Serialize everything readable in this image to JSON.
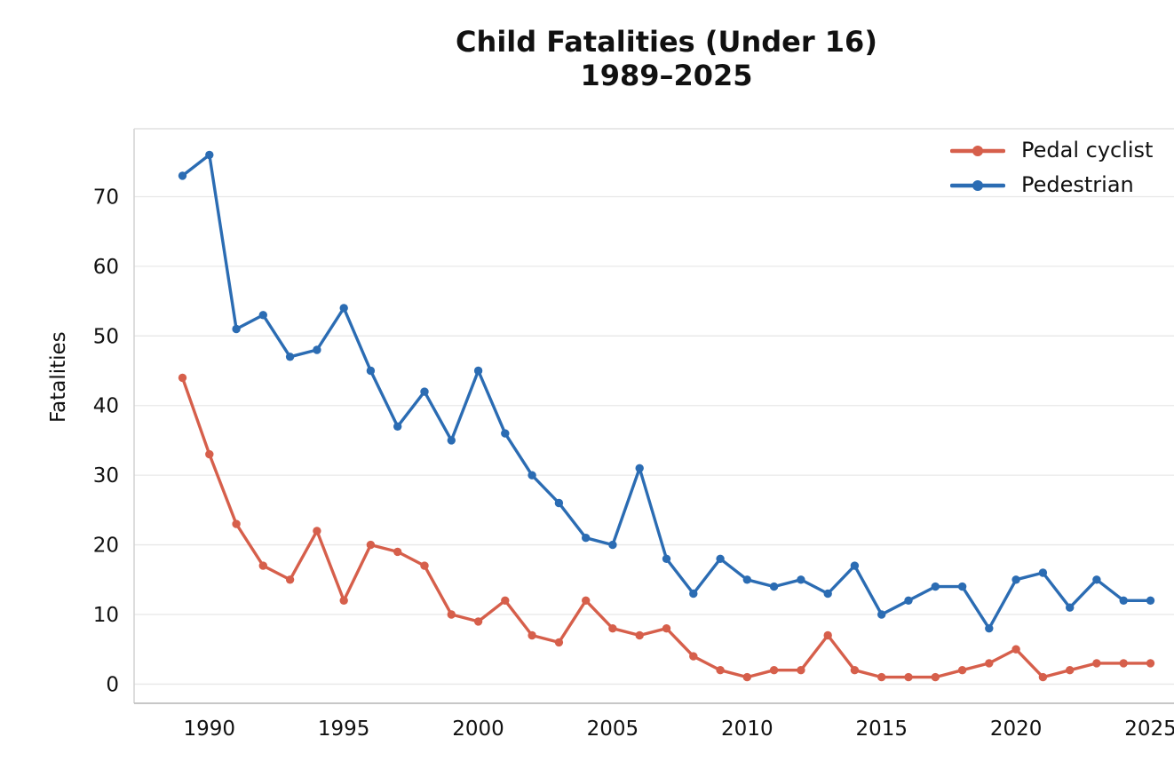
{
  "chart_data": {
    "type": "line",
    "title": "Child Fatalities (Under 16) 1989–2025",
    "title_line1": "Child Fatalities (Under 16)",
    "title_line2": "1989–2025",
    "xlabel": "",
    "ylabel": "Fatalities",
    "x": [
      1989,
      1990,
      1991,
      1992,
      1993,
      1994,
      1995,
      1996,
      1997,
      1998,
      1999,
      2000,
      2001,
      2002,
      2003,
      2004,
      2005,
      2006,
      2007,
      2008,
      2009,
      2010,
      2011,
      2012,
      2013,
      2014,
      2015,
      2016,
      2017,
      2018,
      2019,
      2020,
      2021,
      2022,
      2023,
      2024,
      2025
    ],
    "series": [
      {
        "name": "Pedal cyclist",
        "color": "#d65f4b",
        "values": [
          44,
          33,
          23,
          17,
          15,
          22,
          12,
          20,
          19,
          17,
          10,
          9,
          12,
          7,
          6,
          12,
          8,
          7,
          8,
          4,
          2,
          1,
          2,
          2,
          7,
          2,
          1,
          1,
          1,
          2,
          3,
          5,
          1,
          2,
          3,
          3,
          3
        ]
      },
      {
        "name": "Pedestrian",
        "color": "#2b6cb3",
        "values": [
          73,
          76,
          51,
          53,
          47,
          48,
          54,
          45,
          37,
          42,
          35,
          45,
          36,
          30,
          26,
          21,
          20,
          31,
          18,
          13,
          18,
          15,
          14,
          15,
          13,
          17,
          10,
          12,
          14,
          14,
          8,
          15,
          16,
          11,
          15,
          12,
          12
        ]
      }
    ],
    "xticks": [
      1990,
      1995,
      2000,
      2005,
      2010,
      2015,
      2020,
      2025
    ],
    "yticks": [
      0,
      10,
      20,
      30,
      40,
      50,
      60,
      70
    ],
    "xlim": [
      1987.2,
      2026.8
    ],
    "ylim": [
      -2.75,
      79.75
    ],
    "grid": "horizontal",
    "legend_position": "upper right",
    "marker": "circle"
  }
}
